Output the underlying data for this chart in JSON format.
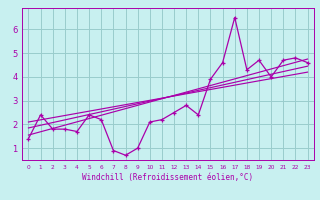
{
  "title": "",
  "xlabel": "Windchill (Refroidissement éolien,°C)",
  "bg_color": "#c8f0f0",
  "line_color": "#aa00aa",
  "grid_color": "#99cccc",
  "xlim": [
    -0.5,
    23.5
  ],
  "ylim": [
    0.5,
    6.9
  ],
  "yticks": [
    1,
    2,
    3,
    4,
    5,
    6
  ],
  "xticks": [
    0,
    1,
    2,
    3,
    4,
    5,
    6,
    7,
    8,
    9,
    10,
    11,
    12,
    13,
    14,
    15,
    16,
    17,
    18,
    19,
    20,
    21,
    22,
    23
  ],
  "series1_x": [
    0,
    1,
    2,
    3,
    4,
    5,
    6,
    7,
    8,
    9,
    10,
    11,
    12,
    13,
    14,
    15,
    16,
    17,
    18,
    19,
    20,
    21,
    22,
    23
  ],
  "series1_y": [
    1.4,
    2.4,
    1.8,
    1.8,
    1.7,
    2.4,
    2.2,
    0.9,
    0.7,
    1.0,
    2.1,
    2.2,
    2.5,
    2.8,
    2.4,
    3.9,
    4.6,
    6.5,
    4.3,
    4.7,
    4.0,
    4.7,
    4.8,
    4.6
  ],
  "trend1_x": [
    0,
    23
  ],
  "trend1_y": [
    1.55,
    4.75
  ],
  "trend2_x": [
    0,
    23
  ],
  "trend2_y": [
    1.85,
    4.45
  ],
  "trend3_x": [
    0,
    23
  ],
  "trend3_y": [
    2.1,
    4.2
  ]
}
